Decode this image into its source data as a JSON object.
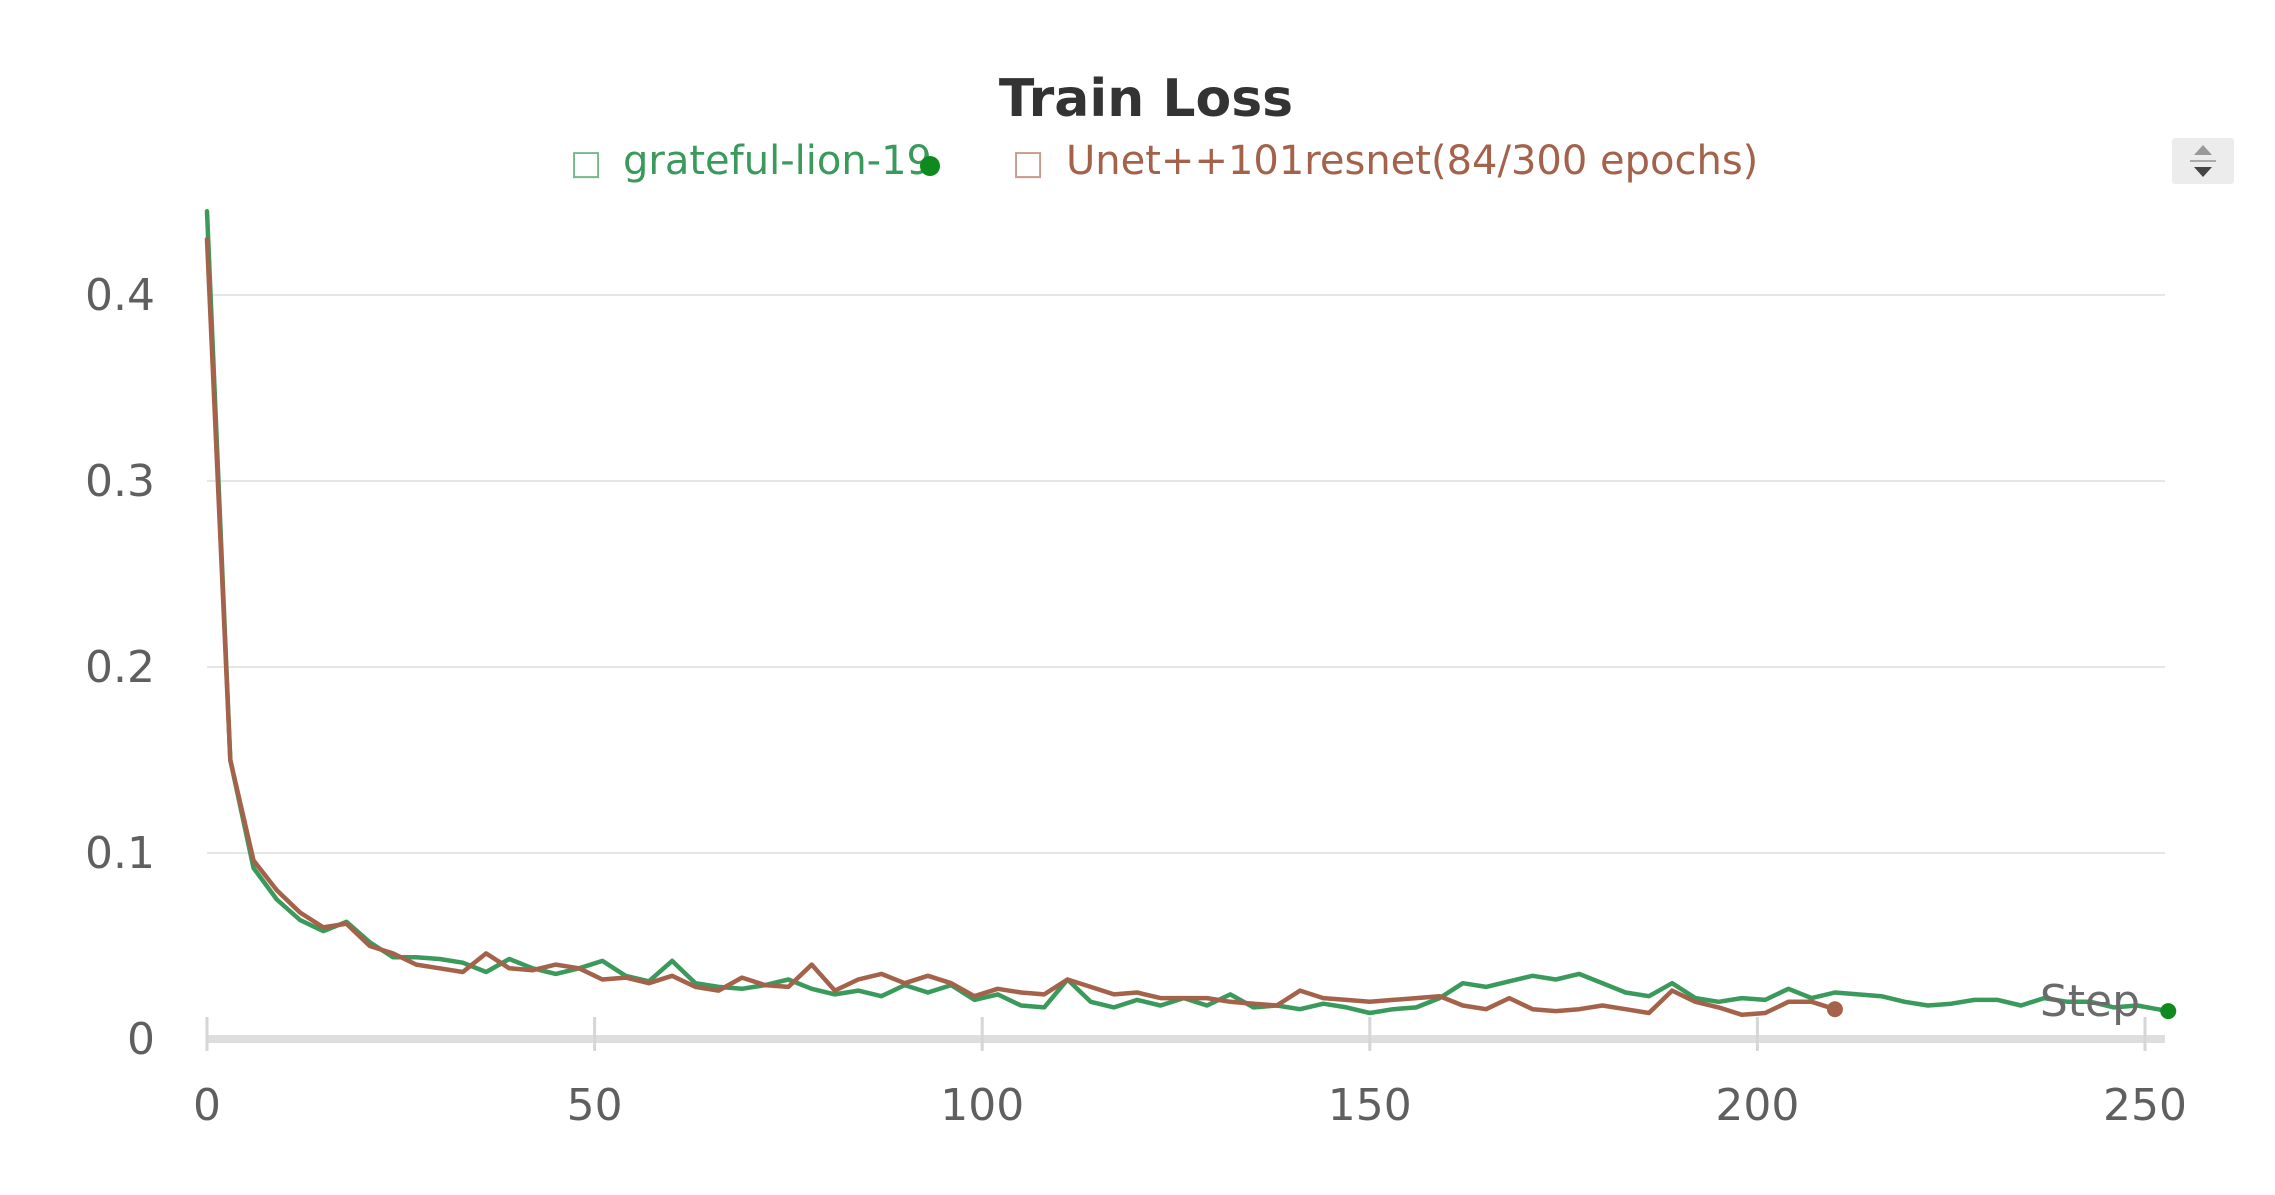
{
  "chart_data": {
    "type": "line",
    "title": "Train Loss",
    "xlabel": "Step",
    "ylabel": "",
    "xlim": [
      0,
      253
    ],
    "ylim": [
      0,
      0.45
    ],
    "x_ticks": [
      0,
      50,
      100,
      150,
      200,
      250
    ],
    "x_tick_labels": [
      "0",
      "50",
      "100",
      "150",
      "200",
      "250"
    ],
    "y_ticks": [
      0,
      0.1,
      0.2,
      0.3,
      0.4
    ],
    "y_tick_labels": [
      "0",
      "0.1",
      "0.2",
      "0.3",
      "0.4"
    ],
    "grid": "horizontal",
    "legend_position": "top-center",
    "legend_marker": "□",
    "series": [
      {
        "name": "grateful-lion-19",
        "color": "#3a9a5c",
        "marker_color": "#0f8a1f",
        "x": [
          0,
          3,
          6,
          9,
          12,
          15,
          18,
          21,
          24,
          27,
          30,
          33,
          36,
          39,
          42,
          45,
          48,
          51,
          54,
          57,
          60,
          63,
          66,
          69,
          72,
          75,
          78,
          81,
          84,
          87,
          90,
          93,
          96,
          99,
          102,
          105,
          108,
          111,
          114,
          117,
          120,
          123,
          126,
          129,
          132,
          135,
          138,
          141,
          144,
          147,
          150,
          153,
          156,
          159,
          162,
          165,
          168,
          171,
          174,
          177,
          180,
          183,
          186,
          189,
          192,
          195,
          198,
          201,
          204,
          207,
          210,
          213,
          216,
          219,
          222,
          225,
          228,
          231,
          234,
          237,
          240,
          243,
          246,
          249,
          253
        ],
        "values": [
          0.445,
          0.15,
          0.092,
          0.075,
          0.064,
          0.058,
          0.063,
          0.052,
          0.044,
          0.044,
          0.043,
          0.041,
          0.036,
          0.043,
          0.038,
          0.035,
          0.038,
          0.042,
          0.034,
          0.031,
          0.042,
          0.03,
          0.028,
          0.027,
          0.029,
          0.032,
          0.027,
          0.024,
          0.026,
          0.023,
          0.029,
          0.025,
          0.029,
          0.021,
          0.024,
          0.018,
          0.017,
          0.032,
          0.02,
          0.017,
          0.021,
          0.018,
          0.022,
          0.018,
          0.024,
          0.017,
          0.018,
          0.016,
          0.019,
          0.017,
          0.014,
          0.016,
          0.017,
          0.022,
          0.03,
          0.028,
          0.031,
          0.034,
          0.032,
          0.035,
          0.03,
          0.025,
          0.023,
          0.03,
          0.022,
          0.02,
          0.022,
          0.021,
          0.027,
          0.022,
          0.025,
          0.024,
          0.023,
          0.02,
          0.018,
          0.019,
          0.021,
          0.021,
          0.018,
          0.022,
          0.02,
          0.02,
          0.017,
          0.018,
          0.015
        ]
      },
      {
        "name": "Unet++101resnet(84/300 epochs)",
        "color": "#a5624a",
        "marker_color": "#a5624a",
        "x": [
          0,
          3,
          6,
          9,
          12,
          15,
          18,
          21,
          24,
          27,
          30,
          33,
          36,
          39,
          42,
          45,
          48,
          51,
          54,
          57,
          60,
          63,
          66,
          69,
          72,
          75,
          78,
          81,
          84,
          87,
          90,
          93,
          96,
          99,
          102,
          105,
          108,
          111,
          114,
          117,
          120,
          123,
          126,
          129,
          132,
          135,
          138,
          141,
          144,
          147,
          150,
          153,
          156,
          159,
          162,
          165,
          168,
          171,
          174,
          177,
          180,
          183,
          186,
          189,
          192,
          195,
          198,
          201,
          204,
          207,
          210
        ],
        "values": [
          0.43,
          0.15,
          0.096,
          0.08,
          0.068,
          0.06,
          0.062,
          0.05,
          0.046,
          0.04,
          0.038,
          0.036,
          0.046,
          0.038,
          0.037,
          0.04,
          0.038,
          0.032,
          0.033,
          0.03,
          0.034,
          0.028,
          0.026,
          0.033,
          0.029,
          0.028,
          0.04,
          0.026,
          0.032,
          0.035,
          0.03,
          0.034,
          0.03,
          0.023,
          0.027,
          0.025,
          0.024,
          0.032,
          0.028,
          0.024,
          0.025,
          0.022,
          0.022,
          0.022,
          0.02,
          0.019,
          0.018,
          0.026,
          0.022,
          0.021,
          0.02,
          0.021,
          0.022,
          0.023,
          0.018,
          0.016,
          0.022,
          0.016,
          0.015,
          0.016,
          0.018,
          0.016,
          0.014,
          0.026,
          0.02,
          0.017,
          0.013,
          0.014,
          0.02,
          0.02,
          0.016
        ]
      }
    ]
  }
}
